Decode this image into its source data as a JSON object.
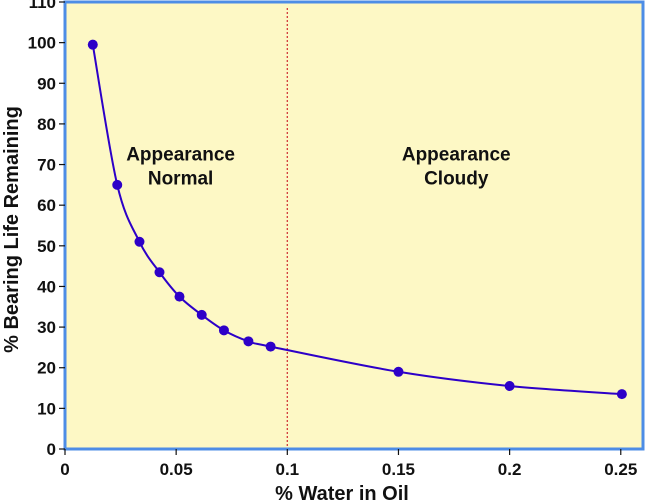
{
  "chart_data": {
    "type": "line",
    "title": "",
    "xlabel": "% Water in Oil",
    "ylabel": "% Bearing Life Remaining",
    "xlim": [
      0,
      0.26
    ],
    "ylim": [
      0,
      110
    ],
    "x_ticks": [
      0,
      0.05,
      0.1,
      0.15,
      0.2,
      0.25
    ],
    "x_tick_labels": [
      "0",
      "0.05",
      "0.1",
      "0.15",
      "0.2",
      "0.25"
    ],
    "y_ticks": [
      0,
      10,
      20,
      30,
      40,
      50,
      60,
      70,
      80,
      90,
      100,
      110
    ],
    "y_tick_labels": [
      "0",
      "10",
      "20",
      "30",
      "40",
      "50",
      "60",
      "70",
      "80",
      "90",
      "100",
      "110"
    ],
    "series": [
      {
        "name": "Bearing Life",
        "x": [
          0.0125,
          0.0235,
          0.0335,
          0.0425,
          0.0515,
          0.0615,
          0.0715,
          0.0825,
          0.0925,
          0.15,
          0.2,
          0.2505
        ],
        "values": [
          99.5,
          65,
          51,
          43.5,
          37.5,
          33,
          29.2,
          26.5,
          25.2,
          19,
          15.5,
          13.5
        ]
      }
    ],
    "divider_x": 0.1,
    "annotations": [
      {
        "lines": [
          "Appearance",
          "Normal"
        ],
        "x": 0.052,
        "y": 71
      },
      {
        "lines": [
          "Appearance",
          "Cloudy"
        ],
        "x": 0.176,
        "y": 71
      }
    ],
    "colors": {
      "background": "#fdf8c5",
      "frame": "#4d8de6",
      "series": "#2d00c8",
      "divider": "#d13a3a"
    }
  }
}
